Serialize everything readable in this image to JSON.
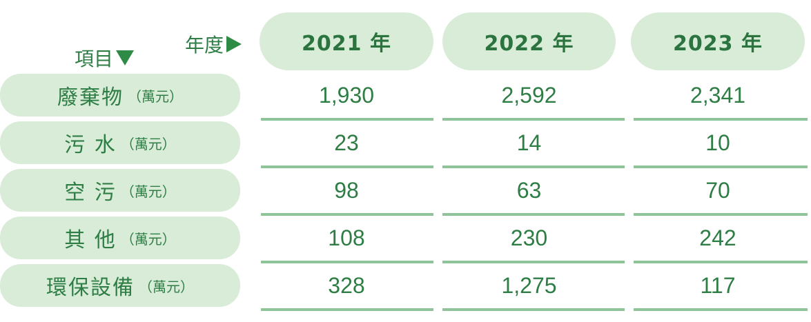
{
  "corner": {
    "year_label": "年度",
    "item_label": "項目"
  },
  "years": [
    "2021 年",
    "2022 年",
    "2023 年"
  ],
  "rows": [
    {
      "name": "廢棄物",
      "unit": "（萬元）",
      "values": [
        "1,930",
        "2,592",
        "2,341"
      ]
    },
    {
      "name": "污 水",
      "unit": "（萬元）",
      "values": [
        "23",
        "14",
        "10"
      ]
    },
    {
      "name": "空 污",
      "unit": "（萬元）",
      "values": [
        "98",
        "63",
        "70"
      ]
    },
    {
      "name": "其 他",
      "unit": "（萬元）",
      "values": [
        "108",
        "230",
        "242"
      ]
    },
    {
      "name": "環保設備",
      "unit": "（萬元）",
      "values": [
        "328",
        "1,275",
        "117"
      ]
    }
  ],
  "colors": {
    "accent": "#2e7d45",
    "pill": "#d8ecd7",
    "rule": "#8fc49a"
  }
}
